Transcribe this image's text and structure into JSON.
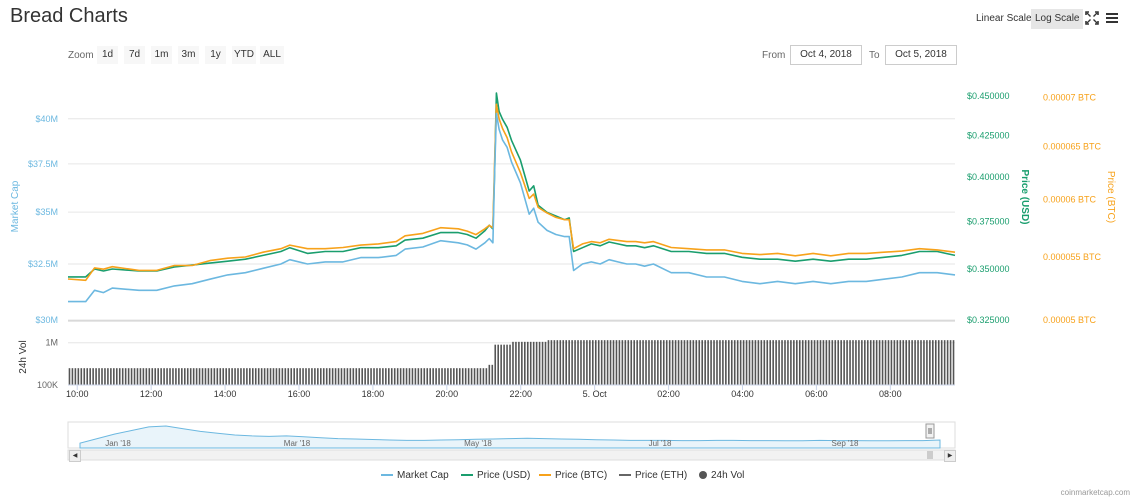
{
  "header": {
    "title": "Bread Charts",
    "linear_label": "Linear Scale",
    "log_label": "Log Scale",
    "icons": [
      "fullscreen-icon",
      "menu-icon"
    ]
  },
  "toolbar": {
    "zoom_label": "Zoom",
    "zoom_buttons": [
      "1d",
      "7d",
      "1m",
      "3m",
      "1y",
      "YTD",
      "ALL"
    ],
    "from_label": "From",
    "from_value": "Oct 4, 2018",
    "to_label": "To",
    "to_value": "Oct 5, 2018"
  },
  "legend": {
    "market_cap": "Market Cap",
    "price_usd": "Price (USD)",
    "price_btc": "Price (BTC)",
    "price_eth": "Price (ETH)",
    "volume": "24h Vol"
  },
  "credits": "coinmarketcap.com",
  "colors": {
    "market_cap": "#6cb8e0",
    "price_usd": "#1a9e6e",
    "price_btc": "#f7a21b",
    "price_eth": "#666666",
    "volume": "#555555"
  },
  "chart_data": [
    {
      "type": "line",
      "x_start": "2018-10-04 09:45",
      "x_end": "2018-10-05 09:45",
      "x_ticks": [
        "10:00",
        "12:00",
        "14:00",
        "16:00",
        "18:00",
        "20:00",
        "22:00",
        "5. Oct",
        "02:00",
        "04:00",
        "06:00",
        "08:00"
      ],
      "log_scale": true,
      "grid": true,
      "legend_position": "bottom",
      "axes": {
        "left": {
          "label": "Market Cap",
          "ticks": [
            "$30M",
            "$32.5M",
            "$35M",
            "$37.5M",
            "$40M"
          ],
          "range": [
            30,
            41.5
          ]
        },
        "right_usd": {
          "label": "Price (USD)",
          "ticks": [
            "$0.325000",
            "$0.350000",
            "$0.375000",
            "$0.400000",
            "$0.425000",
            "$0.450000"
          ],
          "range": [
            0.325,
            0.452
          ]
        },
        "right_btc": {
          "label": "Price (BTC)",
          "ticks": [
            "0.00005 BTC",
            "0.000055 BTC",
            "0.00006 BTC",
            "0.000065 BTC",
            "0.00007 BTC"
          ],
          "range": [
            5e-05,
            7.05e-05
          ]
        }
      },
      "series": [
        {
          "name": "Price (USD)",
          "axis": "right_usd",
          "points": [
            [
              0.0,
              0.346
            ],
            [
              0.02,
              0.346
            ],
            [
              0.03,
              0.35
            ],
            [
              0.04,
              0.349
            ],
            [
              0.05,
              0.35
            ],
            [
              0.08,
              0.349
            ],
            [
              0.1,
              0.349
            ],
            [
              0.12,
              0.351
            ],
            [
              0.14,
              0.352
            ],
            [
              0.16,
              0.353
            ],
            [
              0.18,
              0.354
            ],
            [
              0.2,
              0.355
            ],
            [
              0.22,
              0.357
            ],
            [
              0.24,
              0.359
            ],
            [
              0.25,
              0.361
            ],
            [
              0.27,
              0.358
            ],
            [
              0.29,
              0.359
            ],
            [
              0.31,
              0.359
            ],
            [
              0.33,
              0.361
            ],
            [
              0.35,
              0.361
            ],
            [
              0.37,
              0.362
            ],
            [
              0.38,
              0.365
            ],
            [
              0.4,
              0.366
            ],
            [
              0.42,
              0.369
            ],
            [
              0.44,
              0.369
            ],
            [
              0.45,
              0.368
            ],
            [
              0.46,
              0.366
            ],
            [
              0.47,
              0.37
            ],
            [
              0.475,
              0.373
            ],
            [
              0.479,
              0.371
            ],
            [
              0.481,
              0.403
            ],
            [
              0.483,
              0.452
            ],
            [
              0.486,
              0.44
            ],
            [
              0.49,
              0.435
            ],
            [
              0.495,
              0.43
            ],
            [
              0.5,
              0.422
            ],
            [
              0.51,
              0.41
            ],
            [
              0.52,
              0.392
            ],
            [
              0.525,
              0.395
            ],
            [
              0.53,
              0.384
            ],
            [
              0.54,
              0.38
            ],
            [
              0.55,
              0.378
            ],
            [
              0.56,
              0.376
            ],
            [
              0.565,
              0.377
            ],
            [
              0.57,
              0.359
            ],
            [
              0.58,
              0.361
            ],
            [
              0.59,
              0.363
            ],
            [
              0.6,
              0.362
            ],
            [
              0.61,
              0.364
            ],
            [
              0.62,
              0.363
            ],
            [
              0.63,
              0.362
            ],
            [
              0.64,
              0.362
            ],
            [
              0.65,
              0.361
            ],
            [
              0.66,
              0.362
            ],
            [
              0.68,
              0.359
            ],
            [
              0.7,
              0.359
            ],
            [
              0.72,
              0.358
            ],
            [
              0.74,
              0.358
            ],
            [
              0.76,
              0.356
            ],
            [
              0.78,
              0.355
            ],
            [
              0.8,
              0.355
            ],
            [
              0.82,
              0.354
            ],
            [
              0.84,
              0.355
            ],
            [
              0.86,
              0.354
            ],
            [
              0.88,
              0.355
            ],
            [
              0.9,
              0.355
            ],
            [
              0.92,
              0.356
            ],
            [
              0.94,
              0.357
            ],
            [
              0.96,
              0.359
            ],
            [
              0.98,
              0.359
            ],
            [
              1.0,
              0.357
            ]
          ]
        },
        {
          "name": "Price (BTC)",
          "axis": "right_btc",
          "points": [
            [
              0.0,
              5.32e-05
            ],
            [
              0.02,
              5.31e-05
            ],
            [
              0.03,
              5.41e-05
            ],
            [
              0.04,
              5.4e-05
            ],
            [
              0.05,
              5.42e-05
            ],
            [
              0.08,
              5.39e-05
            ],
            [
              0.1,
              5.39e-05
            ],
            [
              0.12,
              5.43e-05
            ],
            [
              0.14,
              5.43e-05
            ],
            [
              0.16,
              5.47e-05
            ],
            [
              0.18,
              5.49e-05
            ],
            [
              0.2,
              5.5e-05
            ],
            [
              0.22,
              5.54e-05
            ],
            [
              0.24,
              5.57e-05
            ],
            [
              0.25,
              5.6e-05
            ],
            [
              0.27,
              5.57e-05
            ],
            [
              0.29,
              5.57e-05
            ],
            [
              0.31,
              5.58e-05
            ],
            [
              0.33,
              5.6e-05
            ],
            [
              0.35,
              5.61e-05
            ],
            [
              0.37,
              5.63e-05
            ],
            [
              0.38,
              5.68e-05
            ],
            [
              0.4,
              5.7e-05
            ],
            [
              0.42,
              5.75e-05
            ],
            [
              0.44,
              5.74e-05
            ],
            [
              0.45,
              5.72e-05
            ],
            [
              0.46,
              5.69e-05
            ],
            [
              0.47,
              5.74e-05
            ],
            [
              0.475,
              5.77e-05
            ],
            [
              0.479,
              5.75e-05
            ],
            [
              0.481,
              6.35e-05
            ],
            [
              0.483,
              6.93e-05
            ],
            [
              0.486,
              6.78e-05
            ],
            [
              0.49,
              6.68e-05
            ],
            [
              0.495,
              6.59e-05
            ],
            [
              0.5,
              6.45e-05
            ],
            [
              0.51,
              6.25e-05
            ],
            [
              0.52,
              6.01e-05
            ],
            [
              0.525,
              6.05e-05
            ],
            [
              0.53,
              5.93e-05
            ],
            [
              0.54,
              5.88e-05
            ],
            [
              0.55,
              5.84e-05
            ],
            [
              0.56,
              5.82e-05
            ],
            [
              0.565,
              5.82e-05
            ],
            [
              0.57,
              5.57e-05
            ],
            [
              0.58,
              5.61e-05
            ],
            [
              0.59,
              5.63e-05
            ],
            [
              0.6,
              5.62e-05
            ],
            [
              0.61,
              5.65e-05
            ],
            [
              0.62,
              5.64e-05
            ],
            [
              0.63,
              5.63e-05
            ],
            [
              0.64,
              5.63e-05
            ],
            [
              0.65,
              5.62e-05
            ],
            [
              0.66,
              5.63e-05
            ],
            [
              0.68,
              5.58e-05
            ],
            [
              0.7,
              5.57e-05
            ],
            [
              0.72,
              5.56e-05
            ],
            [
              0.74,
              5.56e-05
            ],
            [
              0.76,
              5.53e-05
            ],
            [
              0.78,
              5.52e-05
            ],
            [
              0.8,
              5.53e-05
            ],
            [
              0.82,
              5.51e-05
            ],
            [
              0.84,
              5.53e-05
            ],
            [
              0.86,
              5.51e-05
            ],
            [
              0.88,
              5.53e-05
            ],
            [
              0.9,
              5.53e-05
            ],
            [
              0.92,
              5.54e-05
            ],
            [
              0.94,
              5.55e-05
            ],
            [
              0.96,
              5.57e-05
            ],
            [
              0.98,
              5.56e-05
            ],
            [
              1.0,
              5.54e-05
            ]
          ]
        },
        {
          "name": "Market Cap",
          "axis": "left",
          "points": [
            [
              0.0,
              30.8
            ],
            [
              0.02,
              30.8
            ],
            [
              0.03,
              31.3
            ],
            [
              0.04,
              31.2
            ],
            [
              0.05,
              31.4
            ],
            [
              0.08,
              31.3
            ],
            [
              0.1,
              31.3
            ],
            [
              0.12,
              31.5
            ],
            [
              0.14,
              31.6
            ],
            [
              0.16,
              31.8
            ],
            [
              0.18,
              32.0
            ],
            [
              0.2,
              32.1
            ],
            [
              0.22,
              32.3
            ],
            [
              0.24,
              32.5
            ],
            [
              0.25,
              32.7
            ],
            [
              0.27,
              32.5
            ],
            [
              0.29,
              32.6
            ],
            [
              0.31,
              32.6
            ],
            [
              0.33,
              32.8
            ],
            [
              0.35,
              32.8
            ],
            [
              0.37,
              32.9
            ],
            [
              0.38,
              33.2
            ],
            [
              0.4,
              33.3
            ],
            [
              0.42,
              33.6
            ],
            [
              0.44,
              33.5
            ],
            [
              0.45,
              33.4
            ],
            [
              0.46,
              33.2
            ],
            [
              0.47,
              33.5
            ],
            [
              0.475,
              33.7
            ],
            [
              0.479,
              33.5
            ],
            [
              0.481,
              37.0
            ],
            [
              0.483,
              40.3
            ],
            [
              0.486,
              39.4
            ],
            [
              0.49,
              38.8
            ],
            [
              0.495,
              38.4
            ],
            [
              0.5,
              37.6
            ],
            [
              0.51,
              36.5
            ],
            [
              0.52,
              34.9
            ],
            [
              0.525,
              35.2
            ],
            [
              0.53,
              34.5
            ],
            [
              0.54,
              34.1
            ],
            [
              0.55,
              33.9
            ],
            [
              0.56,
              33.8
            ],
            [
              0.565,
              33.8
            ],
            [
              0.57,
              32.2
            ],
            [
              0.58,
              32.5
            ],
            [
              0.59,
              32.6
            ],
            [
              0.6,
              32.5
            ],
            [
              0.61,
              32.7
            ],
            [
              0.62,
              32.6
            ],
            [
              0.63,
              32.5
            ],
            [
              0.64,
              32.5
            ],
            [
              0.65,
              32.4
            ],
            [
              0.66,
              32.5
            ],
            [
              0.68,
              32.1
            ],
            [
              0.7,
              32.1
            ],
            [
              0.72,
              31.9
            ],
            [
              0.74,
              31.9
            ],
            [
              0.76,
              31.7
            ],
            [
              0.78,
              31.6
            ],
            [
              0.8,
              31.7
            ],
            [
              0.82,
              31.6
            ],
            [
              0.84,
              31.7
            ],
            [
              0.86,
              31.6
            ],
            [
              0.88,
              31.7
            ],
            [
              0.9,
              31.7
            ],
            [
              0.92,
              31.8
            ],
            [
              0.94,
              31.9
            ],
            [
              0.96,
              32.1
            ],
            [
              0.98,
              32.1
            ],
            [
              1.0,
              32.0
            ]
          ]
        }
      ]
    },
    {
      "type": "bar",
      "label": "24h Vol",
      "ticks": [
        "100K",
        "1M"
      ],
      "log_scale": true,
      "range": [
        100000,
        2000000
      ],
      "segments": [
        {
          "x_from": 0.0,
          "x_to": 0.475,
          "value": 250000
        },
        {
          "x_from": 0.475,
          "x_to": 0.481,
          "value": 300000
        },
        {
          "x_from": 0.481,
          "x_to": 0.5,
          "value": 900000
        },
        {
          "x_from": 0.5,
          "x_to": 0.54,
          "value": 1050000
        },
        {
          "x_from": 0.54,
          "x_to": 1.0,
          "value": 1150000
        }
      ]
    },
    {
      "type": "area",
      "label": "navigator",
      "x_ticks": [
        "Jan '18",
        "Mar '18",
        "May '18",
        "Jul '18",
        "Sep '18"
      ],
      "values": [
        0.05,
        0.3,
        0.55,
        0.75,
        0.95,
        1.0,
        0.85,
        0.7,
        0.6,
        0.5,
        0.45,
        0.42,
        0.45,
        0.4,
        0.35,
        0.3,
        0.28,
        0.25,
        0.22,
        0.2,
        0.2,
        0.22,
        0.24,
        0.26,
        0.28,
        0.3,
        0.32,
        0.3,
        0.28,
        0.26,
        0.24,
        0.22,
        0.2,
        0.2,
        0.2,
        0.19,
        0.19,
        0.2,
        0.2,
        0.19,
        0.19,
        0.18,
        0.18,
        0.2,
        0.19,
        0.19,
        0.18,
        0.18,
        0.19,
        0.19,
        0.22
      ]
    }
  ]
}
